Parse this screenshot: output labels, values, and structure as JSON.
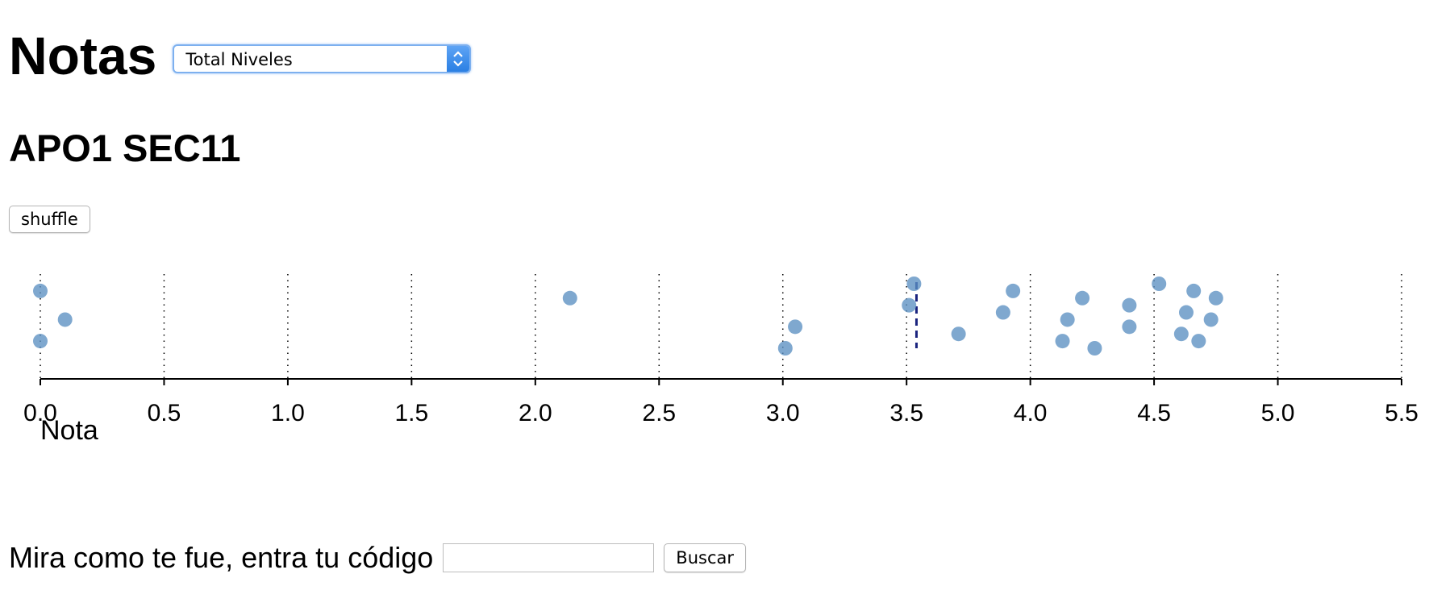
{
  "header": {
    "title": "Notas",
    "select": {
      "value": "Total Niveles"
    }
  },
  "section": {
    "title": "APO1 SEC11"
  },
  "controls": {
    "shuffle_label": "shuffle"
  },
  "colors": {
    "point": "#5b8fc2",
    "mean_line": "#1a237e",
    "axis": "#000000"
  },
  "chart_data": {
    "type": "scatter",
    "xlabel": "Nota",
    "xlim": [
      0.0,
      5.5
    ],
    "x_ticks": [
      "0.0",
      "0.5",
      "1.0",
      "1.5",
      "2.0",
      "2.5",
      "3.0",
      "3.5",
      "4.0",
      "4.5",
      "5.0",
      "5.5"
    ],
    "grid": "vertical-dotted",
    "mean_marker": 3.54,
    "points": [
      0.0,
      0.0,
      0.1,
      2.14,
      3.01,
      3.05,
      3.51,
      3.53,
      3.71,
      3.89,
      3.93,
      4.13,
      4.15,
      4.21,
      4.26,
      4.4,
      4.4,
      4.52,
      4.61,
      4.63,
      4.66,
      4.68,
      4.73,
      4.75
    ]
  },
  "search": {
    "prompt": "Mira como te fue, entra tu código",
    "input_value": "",
    "button_label": "Buscar"
  }
}
